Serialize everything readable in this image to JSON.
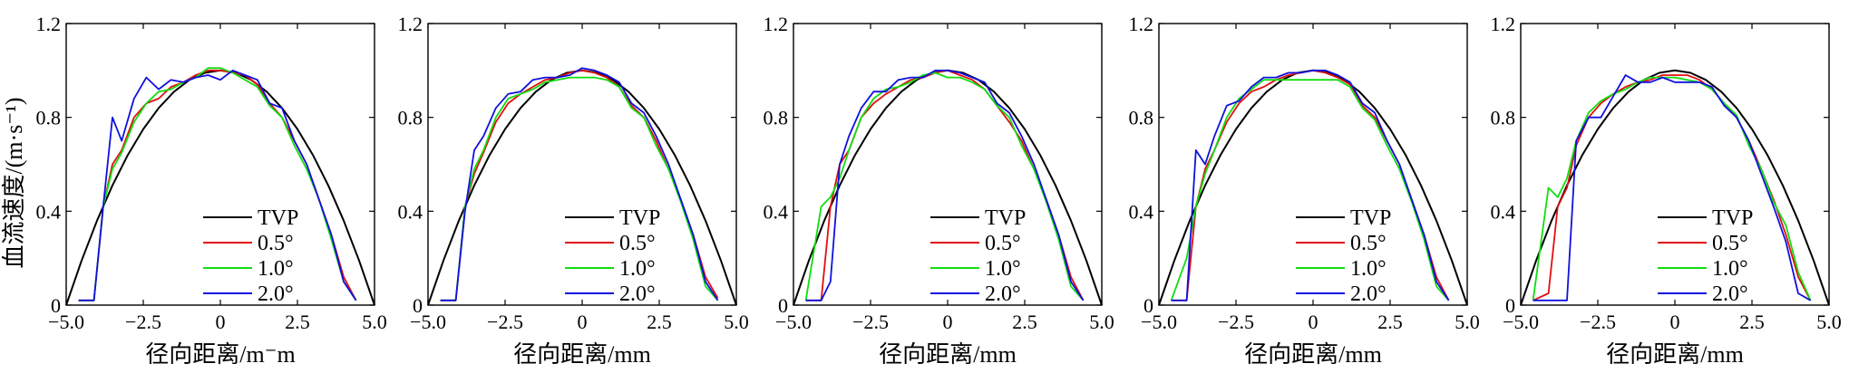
{
  "shared": {
    "ylabel": "血流速度/(m·s⁻¹)",
    "xticks": [
      "−5.0",
      "−2.5",
      "0",
      "2.5",
      "5.0"
    ],
    "yticks": [
      "0",
      "0.4",
      "0.8",
      "1.2"
    ],
    "xlim": [
      -5,
      5
    ],
    "ylim": [
      0,
      1.2
    ],
    "legend_position": "bottom-right",
    "colors": {
      "TVP": "#000000",
      "0.5°": "#e01010",
      "1.0°": "#10dd10",
      "2.0°": "#1010e0"
    }
  },
  "chart_data": [
    {
      "type": "line",
      "xlabel": "径向距离/m⁻m",
      "series": [
        {
          "name": "TVP",
          "x": [
            -5,
            -4.5,
            -4,
            -3.5,
            -3,
            -2.5,
            -2,
            -1.5,
            -1,
            -0.5,
            0,
            0.5,
            1,
            1.5,
            2,
            2.5,
            3,
            3.5,
            4,
            4.5,
            5
          ],
          "y": [
            0,
            0.19,
            0.36,
            0.51,
            0.64,
            0.75,
            0.84,
            0.91,
            0.96,
            0.99,
            1.0,
            0.99,
            0.96,
            0.91,
            0.84,
            0.75,
            0.64,
            0.51,
            0.36,
            0.19,
            0
          ]
        },
        {
          "name": "0.5°",
          "x": [
            -4.6,
            -4.1,
            -3.8,
            -3.5,
            -3.2,
            -2.8,
            -2.4,
            -2.0,
            -1.6,
            -1.2,
            -0.8,
            -0.4,
            0,
            0.4,
            0.8,
            1.2,
            1.6,
            2.0,
            2.4,
            2.8,
            3.2,
            3.6,
            4.0,
            4.4
          ],
          "y": [
            0.02,
            0.02,
            0.42,
            0.6,
            0.66,
            0.8,
            0.86,
            0.88,
            0.93,
            0.95,
            0.98,
            1.0,
            1.0,
            0.99,
            0.98,
            0.94,
            0.86,
            0.8,
            0.7,
            0.6,
            0.45,
            0.3,
            0.12,
            0.02
          ]
        },
        {
          "name": "1.0°",
          "x": [
            -4.6,
            -4.1,
            -3.8,
            -3.5,
            -3.2,
            -2.8,
            -2.4,
            -2.0,
            -1.6,
            -1.2,
            -0.8,
            -0.4,
            0,
            0.4,
            0.8,
            1.2,
            1.6,
            2.0,
            2.4,
            2.8,
            3.2,
            3.6,
            4.0,
            4.4
          ],
          "y": [
            0.02,
            0.02,
            0.42,
            0.58,
            0.65,
            0.78,
            0.86,
            0.91,
            0.92,
            0.95,
            0.97,
            1.01,
            1.01,
            0.99,
            0.96,
            0.93,
            0.85,
            0.8,
            0.68,
            0.58,
            0.45,
            0.28,
            0.1,
            0.02
          ]
        },
        {
          "name": "2.0°",
          "x": [
            -4.6,
            -4.1,
            -3.8,
            -3.5,
            -3.2,
            -2.8,
            -2.4,
            -2.0,
            -1.6,
            -1.2,
            -0.8,
            -0.4,
            0,
            0.4,
            0.8,
            1.2,
            1.6,
            2.0,
            2.4,
            2.8,
            3.2,
            3.6,
            4.0,
            4.4
          ],
          "y": [
            0.02,
            0.02,
            0.42,
            0.8,
            0.7,
            0.88,
            0.97,
            0.92,
            0.96,
            0.95,
            0.97,
            0.98,
            0.96,
            1.0,
            0.98,
            0.96,
            0.86,
            0.84,
            0.7,
            0.6,
            0.45,
            0.3,
            0.1,
            0.02
          ]
        }
      ]
    },
    {
      "type": "line",
      "xlabel": "径向距离/mm",
      "series": [
        {
          "name": "TVP",
          "x": [
            -5,
            -4.5,
            -4,
            -3.5,
            -3,
            -2.5,
            -2,
            -1.5,
            -1,
            -0.5,
            0,
            0.5,
            1,
            1.5,
            2,
            2.5,
            3,
            3.5,
            4,
            4.5,
            5
          ],
          "y": [
            0,
            0.19,
            0.36,
            0.51,
            0.64,
            0.75,
            0.84,
            0.91,
            0.96,
            0.99,
            1.0,
            0.99,
            0.96,
            0.91,
            0.84,
            0.75,
            0.64,
            0.51,
            0.36,
            0.19,
            0
          ]
        },
        {
          "name": "0.5°",
          "x": [
            -4.6,
            -4.1,
            -3.8,
            -3.5,
            -3.2,
            -2.8,
            -2.4,
            -2.0,
            -1.6,
            -1.2,
            -0.8,
            -0.4,
            0,
            0.4,
            0.8,
            1.2,
            1.6,
            2.0,
            2.4,
            2.8,
            3.2,
            3.6,
            4.0,
            4.4
          ],
          "y": [
            0.02,
            0.02,
            0.42,
            0.56,
            0.65,
            0.78,
            0.86,
            0.9,
            0.93,
            0.96,
            0.97,
            0.99,
            1.0,
            0.99,
            0.97,
            0.93,
            0.85,
            0.8,
            0.7,
            0.58,
            0.45,
            0.3,
            0.12,
            0.03
          ]
        },
        {
          "name": "1.0°",
          "x": [
            -4.6,
            -4.1,
            -3.8,
            -3.5,
            -3.2,
            -2.8,
            -2.4,
            -2.0,
            -1.6,
            -1.2,
            -0.8,
            -0.4,
            0,
            0.4,
            0.8,
            1.2,
            1.6,
            2.0,
            2.4,
            2.8,
            3.2,
            3.6,
            4.0,
            4.4
          ],
          "y": [
            0.02,
            0.02,
            0.42,
            0.58,
            0.66,
            0.8,
            0.88,
            0.9,
            0.92,
            0.95,
            0.96,
            0.97,
            0.97,
            0.97,
            0.96,
            0.93,
            0.84,
            0.8,
            0.68,
            0.58,
            0.44,
            0.28,
            0.08,
            0.02
          ]
        },
        {
          "name": "2.0°",
          "x": [
            -4.6,
            -4.1,
            -3.8,
            -3.5,
            -3.2,
            -2.8,
            -2.4,
            -2.0,
            -1.6,
            -1.2,
            -0.8,
            -0.4,
            0,
            0.4,
            0.8,
            1.2,
            1.6,
            2.0,
            2.4,
            2.8,
            3.2,
            3.6,
            4.0,
            4.4
          ],
          "y": [
            0.02,
            0.02,
            0.4,
            0.66,
            0.72,
            0.84,
            0.9,
            0.91,
            0.96,
            0.97,
            0.97,
            0.98,
            1.01,
            1.0,
            0.98,
            0.95,
            0.86,
            0.82,
            0.72,
            0.6,
            0.45,
            0.3,
            0.1,
            0.02
          ]
        }
      ]
    },
    {
      "type": "line",
      "xlabel": "径向距离/mm",
      "series": [
        {
          "name": "TVP",
          "x": [
            -5,
            -4.5,
            -4,
            -3.5,
            -3,
            -2.5,
            -2,
            -1.5,
            -1,
            -0.5,
            0,
            0.5,
            1,
            1.5,
            2,
            2.5,
            3,
            3.5,
            4,
            4.5,
            5
          ],
          "y": [
            0,
            0.19,
            0.36,
            0.51,
            0.64,
            0.75,
            0.84,
            0.91,
            0.96,
            0.99,
            1.0,
            0.99,
            0.96,
            0.91,
            0.84,
            0.75,
            0.64,
            0.51,
            0.36,
            0.19,
            0
          ]
        },
        {
          "name": "0.5°",
          "x": [
            -4.6,
            -4.1,
            -3.8,
            -3.5,
            -3.2,
            -2.8,
            -2.4,
            -2.0,
            -1.6,
            -1.2,
            -0.8,
            -0.4,
            0,
            0.4,
            0.8,
            1.2,
            1.6,
            2.0,
            2.4,
            2.8,
            3.2,
            3.6,
            4.0,
            4.4
          ],
          "y": [
            0.02,
            0.02,
            0.42,
            0.6,
            0.66,
            0.8,
            0.86,
            0.9,
            0.93,
            0.96,
            0.97,
            0.99,
            1.0,
            0.98,
            0.96,
            0.92,
            0.85,
            0.78,
            0.7,
            0.58,
            0.45,
            0.3,
            0.12,
            0.02
          ]
        },
        {
          "name": "1.0°",
          "x": [
            -4.6,
            -4.1,
            -3.8,
            -3.5,
            -3.2,
            -2.8,
            -2.4,
            -2.0,
            -1.6,
            -1.2,
            -0.8,
            -0.4,
            0,
            0.4,
            0.8,
            1.2,
            1.6,
            2.0,
            2.4,
            2.8,
            3.2,
            3.6,
            4.0,
            4.4
          ],
          "y": [
            0.02,
            0.42,
            0.46,
            0.54,
            0.66,
            0.8,
            0.88,
            0.92,
            0.93,
            0.95,
            0.98,
            0.99,
            0.97,
            0.97,
            0.95,
            0.92,
            0.85,
            0.8,
            0.68,
            0.58,
            0.44,
            0.28,
            0.08,
            0.02
          ]
        },
        {
          "name": "2.0°",
          "x": [
            -4.6,
            -4.1,
            -3.8,
            -3.5,
            -3.2,
            -2.8,
            -2.4,
            -2.0,
            -1.6,
            -1.2,
            -0.8,
            -0.4,
            0,
            0.4,
            0.8,
            1.2,
            1.6,
            2.0,
            2.4,
            2.8,
            3.2,
            3.6,
            4.0,
            4.4
          ],
          "y": [
            0.02,
            0.02,
            0.1,
            0.6,
            0.72,
            0.84,
            0.91,
            0.91,
            0.96,
            0.97,
            0.97,
            1.0,
            1.0,
            0.99,
            0.97,
            0.95,
            0.86,
            0.82,
            0.72,
            0.6,
            0.45,
            0.3,
            0.1,
            0.02
          ]
        }
      ]
    },
    {
      "type": "line",
      "xlabel": "径向距离/mm",
      "series": [
        {
          "name": "TVP",
          "x": [
            -5,
            -4.5,
            -4,
            -3.5,
            -3,
            -2.5,
            -2,
            -1.5,
            -1,
            -0.5,
            0,
            0.5,
            1,
            1.5,
            2,
            2.5,
            3,
            3.5,
            4,
            4.5,
            5
          ],
          "y": [
            0,
            0.19,
            0.36,
            0.51,
            0.64,
            0.75,
            0.84,
            0.91,
            0.96,
            0.99,
            1.0,
            0.99,
            0.96,
            0.91,
            0.84,
            0.75,
            0.64,
            0.51,
            0.36,
            0.19,
            0
          ]
        },
        {
          "name": "0.5°",
          "x": [
            -4.6,
            -4.1,
            -3.8,
            -3.5,
            -3.2,
            -2.8,
            -2.4,
            -2.0,
            -1.6,
            -1.2,
            -0.8,
            -0.4,
            0,
            0.4,
            0.8,
            1.2,
            1.6,
            2.0,
            2.4,
            2.8,
            3.2,
            3.6,
            4.0,
            4.4
          ],
          "y": [
            0.02,
            0.02,
            0.42,
            0.58,
            0.66,
            0.78,
            0.86,
            0.91,
            0.93,
            0.96,
            0.98,
            0.99,
            1.0,
            0.99,
            0.97,
            0.94,
            0.85,
            0.8,
            0.7,
            0.6,
            0.45,
            0.3,
            0.12,
            0.02
          ]
        },
        {
          "name": "1.0°",
          "x": [
            -4.6,
            -4.1,
            -3.8,
            -3.5,
            -3.2,
            -2.8,
            -2.4,
            -2.0,
            -1.6,
            -1.2,
            -0.8,
            -0.4,
            0,
            0.4,
            0.8,
            1.2,
            1.6,
            2.0,
            2.4,
            2.8,
            3.2,
            3.6,
            4.0,
            4.4
          ],
          "y": [
            0.02,
            0.2,
            0.42,
            0.56,
            0.66,
            0.8,
            0.88,
            0.92,
            0.96,
            0.96,
            0.96,
            0.96,
            0.96,
            0.96,
            0.96,
            0.93,
            0.84,
            0.79,
            0.68,
            0.58,
            0.44,
            0.28,
            0.08,
            0.02
          ]
        },
        {
          "name": "2.0°",
          "x": [
            -4.6,
            -4.1,
            -3.8,
            -3.5,
            -3.2,
            -2.8,
            -2.4,
            -2.0,
            -1.6,
            -1.2,
            -0.8,
            -0.4,
            0,
            0.4,
            0.8,
            1.2,
            1.6,
            2.0,
            2.4,
            2.8,
            3.2,
            3.6,
            4.0,
            4.4
          ],
          "y": [
            0.02,
            0.02,
            0.66,
            0.6,
            0.72,
            0.85,
            0.87,
            0.93,
            0.97,
            0.97,
            0.99,
            0.99,
            1.0,
            1.0,
            0.98,
            0.95,
            0.86,
            0.82,
            0.7,
            0.6,
            0.45,
            0.3,
            0.1,
            0.02
          ]
        }
      ]
    },
    {
      "type": "line",
      "xlabel": "径向距离/mm",
      "series": [
        {
          "name": "TVP",
          "x": [
            -5,
            -4.5,
            -4,
            -3.5,
            -3,
            -2.5,
            -2,
            -1.5,
            -1,
            -0.5,
            0,
            0.5,
            1,
            1.5,
            2,
            2.5,
            3,
            3.5,
            4,
            4.5,
            5
          ],
          "y": [
            0,
            0.19,
            0.36,
            0.51,
            0.64,
            0.75,
            0.84,
            0.91,
            0.96,
            0.99,
            1.0,
            0.99,
            0.96,
            0.91,
            0.84,
            0.75,
            0.64,
            0.51,
            0.36,
            0.19,
            0
          ]
        },
        {
          "name": "0.5°",
          "x": [
            -4.6,
            -4.1,
            -3.8,
            -3.5,
            -3.2,
            -2.8,
            -2.4,
            -2.0,
            -1.6,
            -1.2,
            -0.8,
            -0.4,
            0,
            0.4,
            0.8,
            1.2,
            1.6,
            2.0,
            2.4,
            2.8,
            3.2,
            3.6,
            4.0,
            4.4
          ],
          "y": [
            0.02,
            0.05,
            0.42,
            0.5,
            0.68,
            0.8,
            0.86,
            0.9,
            0.93,
            0.95,
            0.96,
            0.98,
            0.98,
            0.98,
            0.96,
            0.92,
            0.86,
            0.8,
            0.7,
            0.58,
            0.45,
            0.3,
            0.12,
            0.02
          ]
        },
        {
          "name": "1.0°",
          "x": [
            -4.6,
            -4.1,
            -3.8,
            -3.5,
            -3.2,
            -2.8,
            -2.4,
            -2.0,
            -1.6,
            -1.2,
            -0.8,
            -0.4,
            0,
            0.4,
            0.8,
            1.2,
            1.6,
            2.0,
            2.4,
            2.8,
            3.2,
            3.6,
            4.0,
            4.4
          ],
          "y": [
            0.02,
            0.5,
            0.46,
            0.54,
            0.7,
            0.82,
            0.87,
            0.9,
            0.92,
            0.95,
            0.97,
            0.97,
            0.97,
            0.96,
            0.95,
            0.92,
            0.86,
            0.81,
            0.68,
            0.58,
            0.44,
            0.34,
            0.14,
            0.02
          ]
        },
        {
          "name": "2.0°",
          "x": [
            -4.6,
            -4.1,
            -3.8,
            -3.5,
            -3.2,
            -2.8,
            -2.4,
            -2.0,
            -1.6,
            -1.2,
            -0.8,
            -0.4,
            0,
            0.4,
            0.8,
            1.2,
            1.6,
            2.0,
            2.4,
            2.8,
            3.2,
            3.6,
            4.0,
            4.4
          ],
          "y": [
            0.02,
            0.02,
            0.02,
            0.02,
            0.7,
            0.8,
            0.8,
            0.89,
            0.98,
            0.95,
            0.95,
            0.97,
            0.95,
            0.95,
            0.95,
            0.93,
            0.85,
            0.8,
            0.7,
            0.56,
            0.42,
            0.27,
            0.05,
            0.02
          ]
        }
      ]
    }
  ]
}
